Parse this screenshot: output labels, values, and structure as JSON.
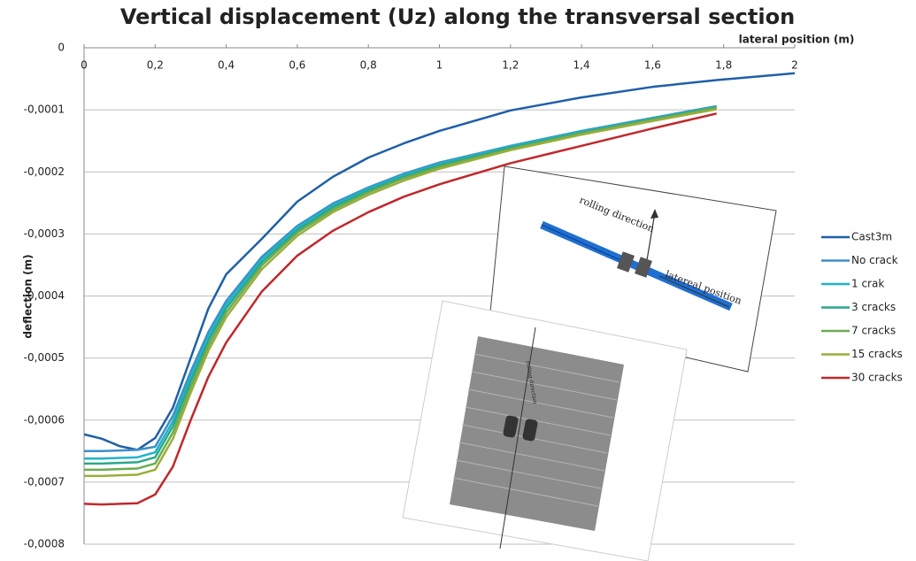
{
  "chart_data": {
    "type": "line",
    "title": "Vertical displacement (Uz) along the transversal section",
    "x_label": "lateral position (m)",
    "y_label": "deflection (m)",
    "x": [
      0,
      0.05,
      0.1,
      0.15,
      0.2,
      0.25,
      0.3,
      0.35,
      0.4,
      0.5,
      0.6,
      0.7,
      0.8,
      0.9,
      1,
      1.2,
      1.4,
      1.6,
      1.78,
      2
    ],
    "series": [
      {
        "name": "Cast3m",
        "color": "#1f5fa8",
        "values": [
          -0.000623,
          -0.00063,
          -0.000642,
          -0.000648,
          -0.000629,
          -0.00058,
          -0.0005,
          -0.00042,
          -0.000365,
          -0.000308,
          -0.000248,
          -0.000208,
          -0.000177,
          -0.000154,
          -0.000134,
          -0.000101,
          -8e-05,
          -6.3e-05,
          -5.2e-05,
          -4.1e-05
        ]
      },
      {
        "name": "No crack",
        "color": "#3d8fc9",
        "values": [
          -0.00065,
          -0.00065,
          -0.000649,
          -0.000648,
          -0.000643,
          -0.000593,
          -0.000522,
          -0.000458,
          -0.000408,
          -0.000337,
          -0.000287,
          -0.000251,
          -0.000225,
          -0.000203,
          -0.000185,
          -0.000158,
          -0.000134,
          -0.000113,
          -9.4e-05,
          null
        ]
      },
      {
        "name": "1 crak",
        "color": "#1fb3c9",
        "values": [
          -0.000662,
          -0.000662,
          -0.000661,
          -0.00066,
          -0.000652,
          -0.000602,
          -0.00053,
          -0.000465,
          -0.000414,
          -0.000341,
          -0.00029,
          -0.000254,
          -0.000227,
          -0.000205,
          -0.000187,
          -0.000159,
          -0.000135,
          -0.000114,
          -9.5e-05,
          null
        ]
      },
      {
        "name": "3 cracks",
        "color": "#2aa889",
        "values": [
          -0.00067,
          -0.00067,
          -0.000669,
          -0.000668,
          -0.00066,
          -0.00061,
          -0.000538,
          -0.000472,
          -0.00042,
          -0.000346,
          -0.000294,
          -0.000257,
          -0.00023,
          -0.000208,
          -0.000189,
          -0.000161,
          -0.000137,
          -0.000115,
          -9.6e-05,
          null
        ]
      },
      {
        "name": "7 cracks",
        "color": "#6bab52",
        "values": [
          -0.00068,
          -0.00068,
          -0.000679,
          -0.000678,
          -0.00067,
          -0.00062,
          -0.000547,
          -0.00048,
          -0.000427,
          -0.000351,
          -0.000298,
          -0.000261,
          -0.000233,
          -0.00021,
          -0.000192,
          -0.000163,
          -0.000138,
          -0.000116,
          -9.7e-05,
          null
        ]
      },
      {
        "name": "15 cracks",
        "color": "#9aae3a",
        "values": [
          -0.00069,
          -0.00069,
          -0.000689,
          -0.000688,
          -0.00068,
          -0.00063,
          -0.000556,
          -0.000488,
          -0.000434,
          -0.000357,
          -0.000303,
          -0.000265,
          -0.000237,
          -0.000214,
          -0.000195,
          -0.000165,
          -0.00014,
          -0.000118,
          -9.9e-05,
          null
        ]
      },
      {
        "name": "30 cracks",
        "color": "#c0282b",
        "values": [
          -0.000735,
          -0.000736,
          -0.000735,
          -0.000734,
          -0.00072,
          -0.000675,
          -0.0006,
          -0.00053,
          -0.000475,
          -0.000393,
          -0.000335,
          -0.000295,
          -0.000265,
          -0.00024,
          -0.00022,
          -0.000186,
          -0.000158,
          -0.00013,
          -0.000106,
          null
        ]
      }
    ],
    "xlim": [
      0,
      2
    ],
    "xticks": [
      0,
      {
        "value": 0.2,
        "label": "0,2"
      },
      {
        "value": 0.4,
        "label": "0,4"
      },
      {
        "value": 0.6,
        "label": "0,6"
      },
      {
        "value": 0.8,
        "label": "0,8"
      },
      1,
      {
        "value": 1.2,
        "label": "1,2"
      },
      {
        "value": 1.4,
        "label": "1,4"
      },
      {
        "value": 1.6,
        "label": "1,6"
      },
      {
        "value": 1.8,
        "label": "1,8"
      },
      2
    ],
    "ylim": [
      -0.0008,
      0
    ],
    "yticks": [
      0,
      {
        "value": -0.0001,
        "label": "-0,0001"
      },
      {
        "value": -0.0002,
        "label": "-0,0002"
      },
      {
        "value": -0.0003,
        "label": "-0,0003"
      },
      {
        "value": -0.0004,
        "label": "-0,0004"
      },
      {
        "value": -0.0005,
        "label": "-0,0005"
      },
      {
        "value": -0.0006,
        "label": "-0,0006"
      },
      {
        "value": -0.0007,
        "label": "-0,0007"
      },
      {
        "value": -0.0008,
        "label": "-0,0008"
      }
    ],
    "grid": true,
    "legend": "right",
    "annotations": [
      "rolling direction",
      "latereal position",
      "rolling direction"
    ]
  }
}
